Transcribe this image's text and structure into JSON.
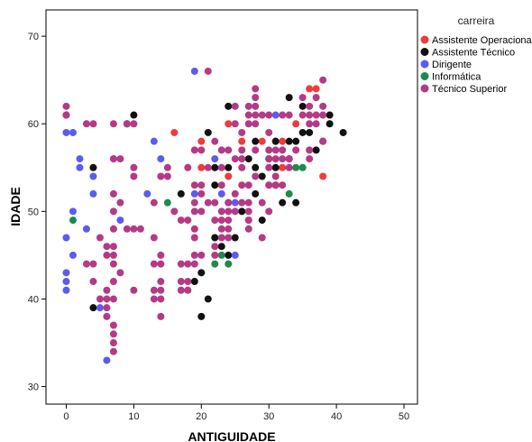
{
  "chart_data": {
    "type": "scatter",
    "xlabel": "ANTIGUIDADE",
    "ylabel": "IDADE",
    "xlim": [
      -3,
      52
    ],
    "ylim": [
      28,
      73
    ],
    "xticks": [
      0,
      10,
      20,
      30,
      40,
      50
    ],
    "yticks": [
      30,
      40,
      50,
      60,
      70
    ],
    "grid": false,
    "legend_title": "carreira",
    "legend_position": "right",
    "series": [
      {
        "name": "Assistente Operacional",
        "color": "#ef3b3b",
        "points": [
          [
            16,
            59
          ],
          [
            20,
            58
          ],
          [
            20,
            55
          ],
          [
            24,
            60
          ],
          [
            24,
            54
          ],
          [
            26,
            58
          ],
          [
            27,
            49
          ],
          [
            29,
            58
          ],
          [
            30,
            53
          ],
          [
            31,
            58
          ],
          [
            32,
            58
          ],
          [
            34,
            60
          ],
          [
            36,
            64
          ],
          [
            37,
            64
          ],
          [
            38,
            54
          ],
          [
            32,
            55
          ]
        ]
      },
      {
        "name": "Assistente Técnico",
        "color": "#111111",
        "points": [
          [
            0,
            61
          ],
          [
            4,
            55
          ],
          [
            4,
            39
          ],
          [
            9,
            60
          ],
          [
            10,
            61
          ],
          [
            17,
            52
          ],
          [
            19,
            42
          ],
          [
            20,
            43
          ],
          [
            20,
            38
          ],
          [
            21,
            40
          ],
          [
            21,
            59
          ],
          [
            22,
            53
          ],
          [
            22,
            47
          ],
          [
            22,
            55
          ],
          [
            23,
            46
          ],
          [
            24,
            62
          ],
          [
            24,
            45
          ],
          [
            25,
            47
          ],
          [
            26,
            50
          ],
          [
            27,
            56
          ],
          [
            28,
            58
          ],
          [
            28,
            55
          ],
          [
            28,
            52
          ],
          [
            29,
            54
          ],
          [
            29,
            49
          ],
          [
            30,
            56
          ],
          [
            31,
            53
          ],
          [
            31,
            55
          ],
          [
            31,
            58
          ],
          [
            32,
            51
          ],
          [
            33,
            63
          ],
          [
            33,
            58
          ],
          [
            33,
            56
          ],
          [
            34,
            51
          ],
          [
            34,
            58
          ],
          [
            35,
            59
          ],
          [
            35,
            62
          ],
          [
            36,
            59
          ],
          [
            37,
            57
          ],
          [
            38,
            58
          ],
          [
            39,
            61
          ],
          [
            39,
            60
          ],
          [
            41,
            59
          ],
          [
            24,
            55
          ]
        ]
      },
      {
        "name": "Dirigente",
        "color": "#5b5bf2",
        "points": [
          [
            0,
            59
          ],
          [
            0,
            47
          ],
          [
            0,
            43
          ],
          [
            0,
            42
          ],
          [
            0,
            41
          ],
          [
            1,
            59
          ],
          [
            1,
            50
          ],
          [
            1,
            45
          ],
          [
            2,
            56
          ],
          [
            2,
            55
          ],
          [
            3,
            48
          ],
          [
            4,
            54
          ],
          [
            4,
            52
          ],
          [
            5,
            39
          ],
          [
            7,
            56
          ],
          [
            8,
            49
          ],
          [
            12,
            52
          ],
          [
            13,
            58
          ],
          [
            14,
            56
          ],
          [
            19,
            66
          ],
          [
            19,
            52
          ],
          [
            22,
            56
          ],
          [
            23,
            52
          ],
          [
            24,
            51
          ],
          [
            25,
            51
          ],
          [
            25,
            45
          ],
          [
            31,
            61
          ],
          [
            6,
            33
          ]
        ]
      },
      {
        "name": "Informática",
        "color": "#1e8a4d",
        "points": [
          [
            1,
            49
          ],
          [
            15,
            51
          ],
          [
            22,
            44
          ],
          [
            23,
            45
          ],
          [
            24,
            44
          ],
          [
            33,
            52
          ],
          [
            34,
            55
          ],
          [
            35,
            55
          ]
        ]
      },
      {
        "name": "Técnico Superior",
        "color": "#b53a86",
        "points": [
          [
            0,
            62
          ],
          [
            0,
            61
          ],
          [
            3,
            60
          ],
          [
            4,
            60
          ],
          [
            3,
            44
          ],
          [
            4,
            44
          ],
          [
            4,
            42
          ],
          [
            5,
            47
          ],
          [
            5,
            40
          ],
          [
            6,
            46
          ],
          [
            6,
            45
          ],
          [
            6,
            41
          ],
          [
            6,
            40
          ],
          [
            6,
            39
          ],
          [
            7,
            46
          ],
          [
            7,
            45
          ],
          [
            7,
            44
          ],
          [
            7,
            42
          ],
          [
            7,
            40
          ],
          [
            7,
            37
          ],
          [
            7,
            36
          ],
          [
            7,
            35
          ],
          [
            7,
            34
          ],
          [
            6,
            38
          ],
          [
            7,
            60
          ],
          [
            7,
            56
          ],
          [
            7,
            52
          ],
          [
            7,
            50
          ],
          [
            7,
            48
          ],
          [
            8,
            56
          ],
          [
            8,
            51
          ],
          [
            8,
            43
          ],
          [
            9,
            60
          ],
          [
            9,
            48
          ],
          [
            10,
            48
          ],
          [
            10,
            60
          ],
          [
            10,
            55
          ],
          [
            10,
            54
          ],
          [
            10,
            41
          ],
          [
            11,
            48
          ],
          [
            13,
            51
          ],
          [
            13,
            47
          ],
          [
            13,
            44
          ],
          [
            13,
            41
          ],
          [
            13,
            40
          ],
          [
            14,
            54
          ],
          [
            14,
            45
          ],
          [
            14,
            44
          ],
          [
            14,
            42
          ],
          [
            14,
            41
          ],
          [
            14,
            40
          ],
          [
            14,
            38
          ],
          [
            15,
            55
          ],
          [
            15,
            54
          ],
          [
            16,
            50
          ],
          [
            17,
            49
          ],
          [
            17,
            44
          ],
          [
            17,
            42
          ],
          [
            17,
            41
          ],
          [
            18,
            55
          ],
          [
            18,
            49
          ],
          [
            18,
            44
          ],
          [
            18,
            42
          ],
          [
            18,
            41
          ],
          [
            19,
            57
          ],
          [
            19,
            53
          ],
          [
            19,
            51
          ],
          [
            19,
            50
          ],
          [
            19,
            48
          ],
          [
            19,
            47
          ],
          [
            19,
            45
          ],
          [
            19,
            44
          ],
          [
            20,
            57
          ],
          [
            20,
            53
          ],
          [
            20,
            52
          ],
          [
            20,
            50
          ],
          [
            20,
            45
          ],
          [
            21,
            55
          ],
          [
            21,
            51
          ],
          [
            21,
            66
          ],
          [
            22,
            58
          ],
          [
            22,
            51
          ],
          [
            22,
            49
          ],
          [
            22,
            46
          ],
          [
            22,
            45
          ],
          [
            23,
            57
          ],
          [
            23,
            55
          ],
          [
            23,
            53
          ],
          [
            23,
            50
          ],
          [
            23,
            49
          ],
          [
            23,
            48
          ],
          [
            23,
            47
          ],
          [
            24,
            51
          ],
          [
            24,
            50
          ],
          [
            24,
            49
          ],
          [
            24,
            48
          ],
          [
            24,
            47
          ],
          [
            24,
            57
          ],
          [
            25,
            62
          ],
          [
            25,
            60
          ],
          [
            25,
            56
          ],
          [
            25,
            52
          ],
          [
            25,
            50
          ],
          [
            26,
            57
          ],
          [
            26,
            56
          ],
          [
            26,
            55
          ],
          [
            26,
            53
          ],
          [
            26,
            51
          ],
          [
            27,
            51
          ],
          [
            27,
            50
          ],
          [
            27,
            49
          ],
          [
            27,
            48
          ],
          [
            27,
            53
          ],
          [
            27,
            62
          ],
          [
            27,
            61
          ],
          [
            28,
            64
          ],
          [
            28,
            63
          ],
          [
            28,
            62
          ],
          [
            28,
            61
          ],
          [
            28,
            60
          ],
          [
            28,
            57
          ],
          [
            28,
            54
          ],
          [
            29,
            51
          ],
          [
            29,
            47
          ],
          [
            30,
            59
          ],
          [
            30,
            57
          ],
          [
            30,
            56
          ],
          [
            30,
            55
          ],
          [
            30,
            53
          ],
          [
            30,
            50
          ],
          [
            31,
            57
          ],
          [
            31,
            56
          ],
          [
            31,
            54
          ],
          [
            31,
            53
          ],
          [
            32,
            61
          ],
          [
            32,
            57
          ],
          [
            32,
            56
          ],
          [
            32,
            53
          ],
          [
            33,
            61
          ],
          [
            33,
            56
          ],
          [
            33,
            55
          ],
          [
            34,
            57
          ],
          [
            35,
            63
          ],
          [
            35,
            61
          ],
          [
            36,
            62
          ],
          [
            36,
            61
          ],
          [
            36,
            60
          ],
          [
            36,
            56
          ],
          [
            37,
            63
          ],
          [
            37,
            61
          ],
          [
            37,
            60
          ],
          [
            38,
            65
          ],
          [
            38,
            62
          ],
          [
            38,
            61
          ],
          [
            38,
            58
          ],
          [
            27,
            60
          ],
          [
            29,
            61
          ],
          [
            26,
            59
          ],
          [
            30,
            61
          ],
          [
            36,
            57
          ]
        ]
      }
    ]
  }
}
